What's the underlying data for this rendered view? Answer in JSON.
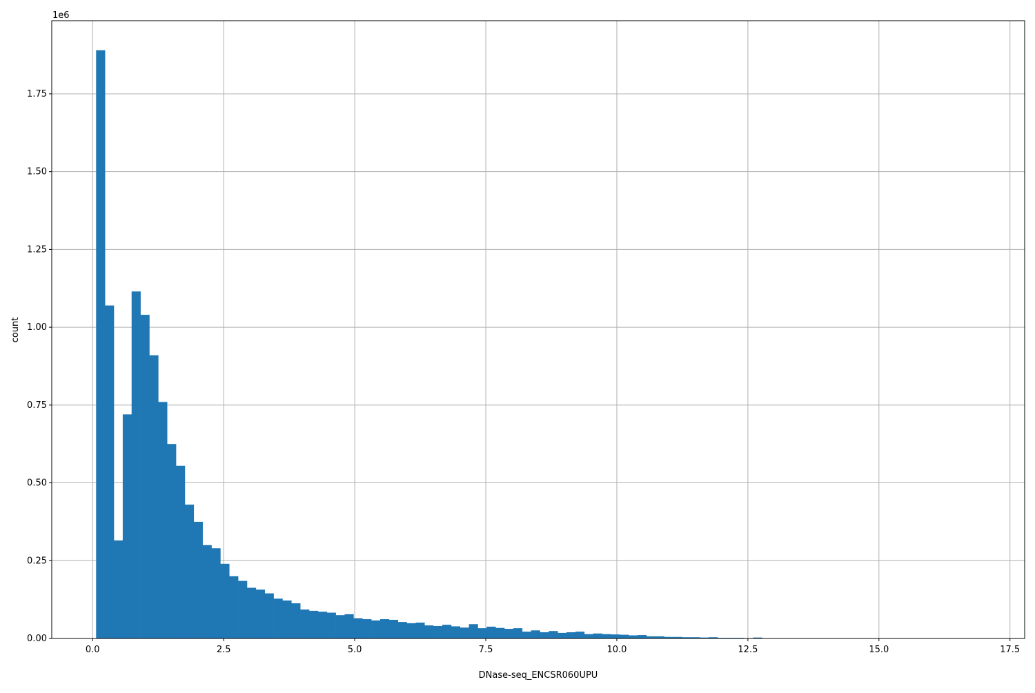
{
  "chart_data": {
    "type": "bar",
    "title": "",
    "xlabel": "DNase-seq_ENCSR060UPU",
    "ylabel": "count",
    "y_offset_label": "1e6",
    "xlim": [
      -0.78,
      17.78
    ],
    "ylim": [
      0,
      1.985
    ],
    "grid": true,
    "color": "#1f77b4",
    "bin_start": 0.066,
    "bin_end": 17.0,
    "xticks": [
      0.0,
      2.5,
      5.0,
      7.5,
      10.0,
      12.5,
      15.0,
      17.5
    ],
    "xtick_labels": [
      "0.0",
      "2.5",
      "5.0",
      "7.5",
      "10.0",
      "12.5",
      "15.0",
      "17.5"
    ],
    "yticks": [
      0,
      0.25,
      0.5,
      0.75,
      1.0,
      1.25,
      1.5,
      1.75
    ],
    "ytick_labels": [
      "0.00",
      "0.25",
      "0.50",
      "0.75",
      "1.00",
      "1.25",
      "1.50",
      "1.75"
    ],
    "values_millions": [
      1.89,
      1.07,
      0.315,
      0.72,
      1.115,
      1.04,
      0.91,
      0.76,
      0.625,
      0.555,
      0.43,
      0.375,
      0.3,
      0.29,
      0.24,
      0.2,
      0.185,
      0.163,
      0.157,
      0.145,
      0.128,
      0.122,
      0.113,
      0.093,
      0.089,
      0.086,
      0.083,
      0.075,
      0.078,
      0.065,
      0.062,
      0.058,
      0.062,
      0.06,
      0.053,
      0.049,
      0.051,
      0.042,
      0.04,
      0.044,
      0.039,
      0.035,
      0.046,
      0.033,
      0.038,
      0.034,
      0.031,
      0.033,
      0.022,
      0.026,
      0.02,
      0.024,
      0.018,
      0.02,
      0.022,
      0.014,
      0.016,
      0.014,
      0.013,
      0.012,
      0.01,
      0.011,
      0.007,
      0.007,
      0.005,
      0.005,
      0.004,
      0.004,
      0.003,
      0.004,
      0.002,
      0.002,
      0.002,
      0.001,
      0.003,
      0.0005,
      0.0005,
      0.0003,
      0.0003,
      0.0002,
      0.0002,
      0.0001,
      0.0001,
      0.0001,
      0.0001,
      0,
      0,
      0,
      0,
      0,
      0,
      0,
      0,
      0,
      0,
      0,
      0,
      0,
      0,
      0.0001
    ]
  }
}
